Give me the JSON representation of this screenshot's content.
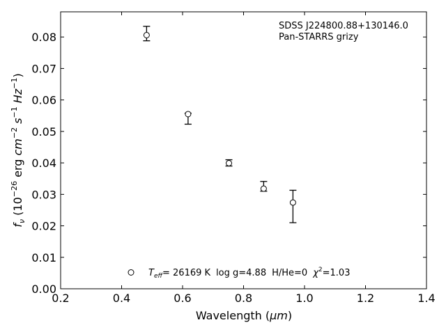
{
  "chart_data": {
    "type": "scatter",
    "xlabel_main": "Wavelength (",
    "xlabel_unit": "μm",
    "xlabel_close": ")",
    "ylabel": {
      "f": "f",
      "nu": "ν",
      "open": " (10",
      "exp1": "−26",
      "erg": " erg ",
      "cm": "cm",
      "exp2": "−2",
      "s": " s",
      "exp3": "−1",
      "hz": " Hz",
      "exp4": "−1",
      "close": ")"
    },
    "xlim": [
      0.2,
      1.4
    ],
    "ylim": [
      0.0,
      0.088
    ],
    "x_ticks": [
      0.2,
      0.4,
      0.6,
      0.8,
      1.0,
      1.2,
      1.4
    ],
    "x_tick_labels": [
      "0.2",
      "0.4",
      "0.6",
      "0.8",
      "1.0",
      "1.2",
      "1.4"
    ],
    "y_ticks": [
      0.0,
      0.01,
      0.02,
      0.03,
      0.04,
      0.05,
      0.06,
      0.07,
      0.08
    ],
    "y_tick_labels": [
      "0.00",
      "0.01",
      "0.02",
      "0.03",
      "0.04",
      "0.05",
      "0.06",
      "0.07",
      "0.08"
    ],
    "grid": false,
    "points": [
      {
        "x": 0.482,
        "y": 0.0806,
        "ylo": 0.0788,
        "yhi": 0.0834
      },
      {
        "x": 0.618,
        "y": 0.0555,
        "ylo": 0.0523,
        "yhi": 0.0558
      },
      {
        "x": 0.752,
        "y": 0.0399,
        "ylo": 0.039,
        "yhi": 0.041
      },
      {
        "x": 0.866,
        "y": 0.0318,
        "ylo": 0.031,
        "yhi": 0.0341
      },
      {
        "x": 0.962,
        "y": 0.0274,
        "ylo": 0.021,
        "yhi": 0.0313
      }
    ],
    "annotation": {
      "line1": "SDSS J224800.88+130146.0",
      "line2": "Pan-STARRS grizy"
    },
    "legend": {
      "position": "bottom-center",
      "T": "T",
      "eff": "eff",
      "teff_value": "= 26169 K",
      "logg": "log g=4.88",
      "hhe": "H/He=0",
      "chi": "χ",
      "chi_exp": "2",
      "chi_value": "=1.03"
    }
  }
}
